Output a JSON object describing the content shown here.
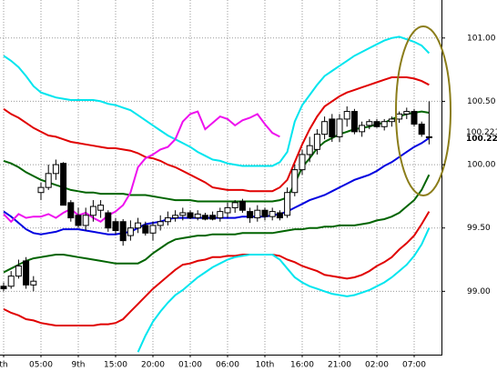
{
  "chart_data": {
    "type": "candlestick",
    "categories": [
      "th",
      null,
      null,
      null,
      null,
      "05:00",
      null,
      null,
      null,
      null,
      "9th",
      null,
      null,
      null,
      null,
      "15:00",
      null,
      null,
      null,
      null,
      "20:00",
      null,
      null,
      null,
      null,
      "01:00",
      null,
      null,
      null,
      null,
      "06:00",
      null,
      null,
      null,
      null,
      "10th",
      null,
      null,
      null,
      null,
      "16:00",
      null,
      null,
      null,
      null,
      "21:00",
      null,
      null,
      null,
      null,
      "02:00",
      null,
      null,
      null,
      null,
      "07:00",
      null,
      null
    ],
    "open": [
      99.04,
      99.04,
      99.12,
      99.24,
      99.05,
      99.78,
      99.82,
      99.93,
      100.01,
      99.7,
      99.6,
      99.52,
      99.6,
      99.64,
      99.62,
      99.55,
      99.55,
      99.44,
      99.5,
      99.52,
      99.46,
      99.52,
      99.55,
      99.58,
      99.6,
      99.62,
      99.58,
      99.6,
      99.6,
      99.58,
      99.62,
      99.66,
      99.71,
      99.63,
      99.58,
      99.64,
      99.59,
      99.62,
      99.6,
      99.78,
      99.96,
      100.08,
      100.12,
      100.24,
      100.36,
      100.22,
      100.36,
      100.42,
      100.26,
      100.31,
      100.34,
      100.3,
      100.34,
      100.36,
      100.4,
      100.42,
      100.32,
      100.22
    ],
    "high": [
      99.07,
      99.16,
      99.25,
      99.27,
      99.12,
      99.86,
      100.0,
      100.04,
      100.02,
      99.72,
      99.66,
      99.66,
      99.72,
      99.72,
      99.64,
      99.58,
      99.57,
      99.56,
      99.58,
      99.55,
      99.55,
      99.6,
      99.63,
      99.64,
      99.66,
      99.64,
      99.64,
      99.62,
      99.63,
      99.66,
      99.7,
      99.72,
      99.73,
      99.66,
      99.68,
      99.66,
      99.66,
      99.64,
      99.82,
      100.0,
      100.12,
      100.22,
      100.28,
      100.38,
      100.4,
      100.4,
      100.46,
      100.44,
      100.34,
      100.36,
      100.36,
      100.36,
      100.38,
      100.42,
      100.45,
      100.44,
      100.34,
      100.5
    ],
    "low": [
      99.0,
      99.02,
      99.1,
      99.02,
      99.0,
      99.72,
      99.8,
      99.88,
      99.7,
      99.55,
      99.5,
      99.48,
      99.55,
      99.58,
      99.47,
      99.45,
      99.36,
      99.4,
      99.46,
      99.44,
      99.4,
      99.48,
      99.52,
      99.55,
      99.56,
      99.57,
      99.56,
      99.56,
      99.56,
      99.55,
      99.58,
      99.62,
      99.62,
      99.54,
      99.55,
      99.56,
      99.56,
      99.56,
      99.58,
      99.75,
      99.92,
      100.02,
      100.08,
      100.2,
      100.18,
      100.18,
      100.3,
      100.24,
      100.22,
      100.28,
      100.29,
      100.27,
      100.3,
      100.33,
      100.36,
      100.3,
      100.22,
      100.16
    ],
    "close": [
      99.02,
      99.12,
      99.2,
      99.05,
      99.08,
      99.82,
      99.93,
      100.0,
      99.68,
      99.58,
      99.52,
      99.6,
      99.67,
      99.68,
      99.5,
      99.48,
      99.4,
      99.5,
      99.54,
      99.46,
      99.52,
      99.55,
      99.58,
      99.6,
      99.62,
      99.58,
      99.61,
      99.57,
      99.57,
      99.63,
      99.66,
      99.7,
      99.64,
      99.58,
      99.64,
      99.59,
      99.63,
      99.58,
      99.78,
      99.96,
      100.08,
      100.15,
      100.24,
      100.34,
      100.22,
      100.36,
      100.42,
      100.26,
      100.31,
      100.34,
      100.3,
      100.34,
      100.36,
      100.4,
      100.42,
      100.32,
      100.24,
      100.22
    ],
    "up_color": "#ffffff",
    "down_color": "#000000",
    "wick_color": "#000000",
    "series": [
      {
        "color": "#00e5ee",
        "values": [
          100.86,
          100.82,
          100.77,
          100.7,
          100.62,
          100.57,
          100.55,
          100.53,
          100.52,
          100.51,
          100.51,
          100.51,
          100.51,
          100.5,
          100.48,
          100.47,
          100.45,
          100.43,
          100.39,
          100.35,
          100.31,
          100.27,
          100.23,
          100.2,
          100.17,
          100.14,
          100.1,
          100.07,
          100.04,
          100.03,
          100.01,
          100.0,
          99.99,
          99.99,
          99.99,
          99.99,
          99.99,
          100.02,
          100.1,
          100.34,
          100.47,
          100.55,
          100.63,
          100.7,
          100.74,
          100.78,
          100.82,
          100.86,
          100.89,
          100.92,
          100.95,
          100.98,
          101.0,
          101.01,
          100.99,
          100.97,
          100.94,
          100.88
        ]
      },
      {
        "color": "#e00000",
        "values": [
          100.44,
          100.4,
          100.37,
          100.33,
          100.29,
          100.26,
          100.23,
          100.22,
          100.2,
          100.18,
          100.17,
          100.16,
          100.15,
          100.14,
          100.13,
          100.13,
          100.12,
          100.11,
          100.09,
          100.06,
          100.05,
          100.03,
          100.0,
          99.98,
          99.95,
          99.92,
          99.89,
          99.86,
          99.82,
          99.81,
          99.8,
          99.8,
          99.8,
          99.79,
          99.79,
          99.79,
          99.79,
          99.82,
          99.88,
          100.02,
          100.16,
          100.28,
          100.38,
          100.46,
          100.5,
          100.54,
          100.57,
          100.59,
          100.61,
          100.63,
          100.65,
          100.67,
          100.69,
          100.69,
          100.69,
          100.68,
          100.66,
          100.63
        ]
      },
      {
        "color": "#006400",
        "values": [
          100.03,
          100.01,
          99.98,
          99.94,
          99.91,
          99.88,
          99.86,
          99.84,
          99.82,
          99.8,
          99.79,
          99.78,
          99.78,
          99.77,
          99.77,
          99.77,
          99.77,
          99.76,
          99.76,
          99.76,
          99.75,
          99.74,
          99.73,
          99.72,
          99.72,
          99.72,
          99.71,
          99.71,
          99.71,
          99.71,
          99.71,
          99.71,
          99.71,
          99.71,
          99.71,
          99.71,
          99.71,
          99.72,
          99.74,
          99.85,
          99.98,
          100.05,
          100.13,
          100.18,
          100.21,
          100.24,
          100.26,
          100.28,
          100.29,
          100.3,
          100.32,
          100.33,
          100.36,
          100.38,
          100.4,
          100.41,
          100.42,
          100.41
        ]
      },
      {
        "color": "#0000e0",
        "values": [
          99.63,
          99.59,
          99.54,
          99.49,
          99.46,
          99.45,
          99.46,
          99.47,
          99.49,
          99.49,
          99.49,
          99.48,
          99.47,
          99.46,
          99.45,
          99.45,
          99.46,
          99.47,
          99.5,
          99.53,
          99.54,
          99.55,
          99.57,
          99.58,
          99.58,
          99.58,
          99.58,
          99.58,
          99.58,
          99.58,
          99.58,
          99.58,
          99.59,
          99.59,
          99.59,
          99.59,
          99.6,
          99.61,
          99.63,
          99.66,
          99.69,
          99.72,
          99.74,
          99.76,
          99.79,
          99.82,
          99.85,
          99.88,
          99.9,
          99.92,
          99.95,
          99.99,
          100.02,
          100.06,
          100.1,
          100.14,
          100.17,
          100.21
        ]
      },
      {
        "color": "#006400",
        "values": [
          99.15,
          99.18,
          99.21,
          99.24,
          99.26,
          99.27,
          99.28,
          99.29,
          99.29,
          99.28,
          99.27,
          99.26,
          99.25,
          99.24,
          99.23,
          99.22,
          99.22,
          99.22,
          99.22,
          99.25,
          99.3,
          99.34,
          99.38,
          99.41,
          99.42,
          99.43,
          99.44,
          99.44,
          99.45,
          99.45,
          99.45,
          99.45,
          99.46,
          99.46,
          99.46,
          99.46,
          99.46,
          99.47,
          99.48,
          99.49,
          99.49,
          99.5,
          99.5,
          99.51,
          99.51,
          99.52,
          99.52,
          99.52,
          99.53,
          99.54,
          99.56,
          99.57,
          99.59,
          99.62,
          99.67,
          99.72,
          99.8,
          99.92
        ]
      },
      {
        "color": "#e00000",
        "values": [
          98.86,
          98.83,
          98.81,
          98.78,
          98.77,
          98.75,
          98.74,
          98.73,
          98.73,
          98.73,
          98.73,
          98.73,
          98.73,
          98.74,
          98.74,
          98.75,
          98.78,
          98.84,
          98.9,
          98.96,
          99.02,
          99.07,
          99.12,
          99.17,
          99.21,
          99.22,
          99.24,
          99.25,
          99.27,
          99.27,
          99.28,
          99.28,
          99.29,
          99.29,
          99.29,
          99.29,
          99.29,
          99.28,
          99.25,
          99.23,
          99.2,
          99.18,
          99.16,
          99.13,
          99.12,
          99.11,
          99.1,
          99.11,
          99.13,
          99.16,
          99.2,
          99.23,
          99.27,
          99.33,
          99.38,
          99.44,
          99.53,
          99.63
        ]
      },
      {
        "color": "#00e5ee",
        "values": [
          null,
          null,
          null,
          null,
          null,
          null,
          null,
          null,
          null,
          null,
          null,
          null,
          null,
          null,
          null,
          null,
          null,
          null,
          98.52,
          98.65,
          98.76,
          98.84,
          98.91,
          98.97,
          99.01,
          99.06,
          99.11,
          99.15,
          99.19,
          99.22,
          99.25,
          99.27,
          99.28,
          99.29,
          99.29,
          99.29,
          99.29,
          99.25,
          99.18,
          99.11,
          99.07,
          99.04,
          99.02,
          99.0,
          98.98,
          98.97,
          98.96,
          98.97,
          98.99,
          99.01,
          99.04,
          99.07,
          99.11,
          99.16,
          99.21,
          99.28,
          99.37,
          99.5
        ]
      },
      {
        "color": "#ee10ee",
        "values": [
          99.61,
          99.55,
          99.61,
          99.58,
          99.59,
          99.59,
          99.61,
          99.58,
          99.62,
          99.65,
          99.6,
          99.62,
          99.58,
          99.55,
          99.6,
          99.63,
          99.68,
          99.78,
          99.98,
          100.05,
          100.08,
          100.12,
          100.14,
          100.2,
          100.34,
          100.4,
          100.42,
          100.28,
          100.33,
          100.38,
          100.36,
          100.31,
          100.35,
          100.37,
          100.4,
          100.32,
          100.25,
          100.22,
          null,
          null,
          null,
          null,
          null,
          null,
          null,
          null,
          null,
          null,
          null,
          null,
          null,
          null,
          null,
          null,
          null,
          null,
          null,
          null
        ]
      }
    ],
    "ylim": [
      98.5,
      101.3
    ],
    "yticks": [
      {
        "value": 99,
        "label": "99.00"
      },
      {
        "value": 99.5,
        "label": "99.50"
      },
      {
        "value": 100,
        "label": "100.00"
      },
      {
        "value": 100.5,
        "label": "100.50"
      },
      {
        "value": 101,
        "label": "101.00"
      }
    ],
    "grid": true,
    "price_labels": [
      {
        "value": 100.221,
        "label": "100.221",
        "color": "#ee10ee"
      },
      {
        "value": 100.22,
        "label": "100.22",
        "color": "#000000"
      }
    ]
  }
}
